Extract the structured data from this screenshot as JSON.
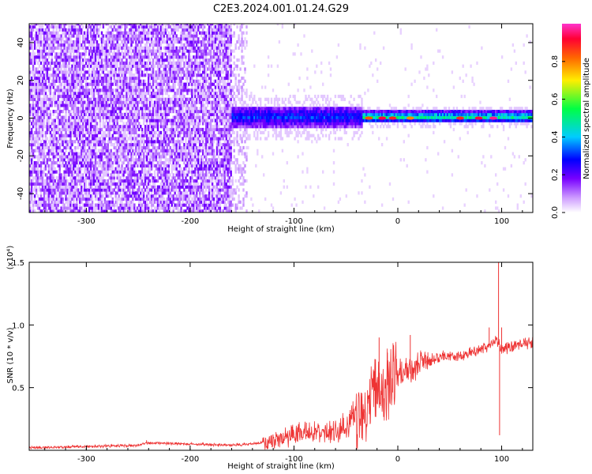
{
  "title": "C2E3.2024.001.01.24.G29",
  "colors": {
    "snr_line": "#ee3333",
    "spectrum_scale": [
      "#ffffff",
      "#cc99ff",
      "#7700ff",
      "#0000ff",
      "#00ccff",
      "#00ff44",
      "#ffee00",
      "#ff6600",
      "#ff0033",
      "#ff33cc"
    ]
  },
  "chart_data": [
    {
      "type": "heatmap",
      "title": "C2E3.2024.001.01.24.G29",
      "xlabel": "Height of straight line (km)",
      "ylabel": "Frequency (Hz)",
      "xlim": [
        -355,
        130
      ],
      "ylim": [
        -50,
        50
      ],
      "xticks": [
        -300,
        -200,
        -100,
        0,
        100
      ],
      "yticks": [
        -40,
        -20,
        0,
        20,
        40
      ],
      "xtick_labels": [
        "-300",
        "-200",
        "-100",
        "0",
        "100"
      ],
      "ytick_labels": [
        "-40",
        "-20",
        "0",
        "20",
        "40"
      ],
      "colorbar": {
        "label": "Normalized spectral amplitude",
        "range": [
          0,
          1
        ],
        "ticks": [
          0.0,
          0.2,
          0.4,
          0.6,
          0.8
        ],
        "tick_labels": [
          "0.0",
          "0.2",
          "0.4",
          "0.6",
          "0.8"
        ],
        "colormap": "rainbow (white-purple-blue-cyan-green-yellow-red-magenta)"
      },
      "regions": [
        {
          "x_range": [
            -355,
            -160
          ],
          "freq_range": [
            -50,
            50
          ],
          "amplitude": 0.1,
          "pattern": "scattered noise"
        },
        {
          "x_range": [
            -160,
            -145
          ],
          "freq_range": [
            -50,
            50
          ],
          "amplitude": 0.05,
          "pattern": "sparse noise"
        },
        {
          "x_range": [
            -160,
            -35
          ],
          "freq_center": 0,
          "freq_halfwidth": 6,
          "amplitude": 0.3,
          "pattern": "spread band"
        },
        {
          "x_range": [
            -35,
            130
          ],
          "freq_center": 0,
          "freq_halfwidth": 3,
          "amplitude": 0.45,
          "pattern": "narrow band"
        }
      ]
    },
    {
      "type": "line",
      "xlabel": "Height of straight line (km)",
      "ylabel": "SNR (10 * v/v)",
      "y_multiplier_label": "(x10⁴)",
      "xlim": [
        -355,
        130
      ],
      "ylim": [
        0,
        1.5
      ],
      "xticks": [
        -300,
        -200,
        -100,
        0,
        100
      ],
      "yticks": [
        0.5,
        1.0,
        1.5
      ],
      "xtick_labels": [
        "-300",
        "-200",
        "-100",
        "0",
        "100"
      ],
      "ytick_labels": [
        "0.5",
        "1.0",
        "1.5"
      ],
      "series": [
        {
          "x": [
            -355,
            -300,
            -250,
            -240,
            -200,
            -160,
            -140,
            -120,
            -110,
            -100,
            -90,
            -80,
            -70,
            -60,
            -50,
            -40,
            -30,
            -20,
            -10,
            0,
            10,
            20,
            30,
            40,
            50,
            60,
            70,
            80,
            90,
            95,
            100,
            110,
            120,
            130
          ],
          "y": [
            0.02,
            0.03,
            0.04,
            0.06,
            0.05,
            0.04,
            0.05,
            0.07,
            0.1,
            0.12,
            0.14,
            0.14,
            0.13,
            0.15,
            0.2,
            0.28,
            0.35,
            0.45,
            0.52,
            0.6,
            0.65,
            0.68,
            0.72,
            0.74,
            0.76,
            0.76,
            0.78,
            0.8,
            0.85,
            0.88,
            0.8,
            0.83,
            0.85,
            0.86
          ]
        }
      ],
      "spikes": [
        {
          "x": -242,
          "y": 0.08
        },
        {
          "x": -88,
          "y": 0.22
        },
        {
          "x": -18,
          "y": 0.9
        },
        {
          "x": -10,
          "y": 0.78
        },
        {
          "x": 12,
          "y": 0.92
        },
        {
          "x": 88,
          "y": 0.98
        },
        {
          "x": 97,
          "y": 1.5
        },
        {
          "x": 98,
          "y": 0.12
        },
        {
          "x": 100,
          "y": 0.98
        }
      ]
    }
  ]
}
